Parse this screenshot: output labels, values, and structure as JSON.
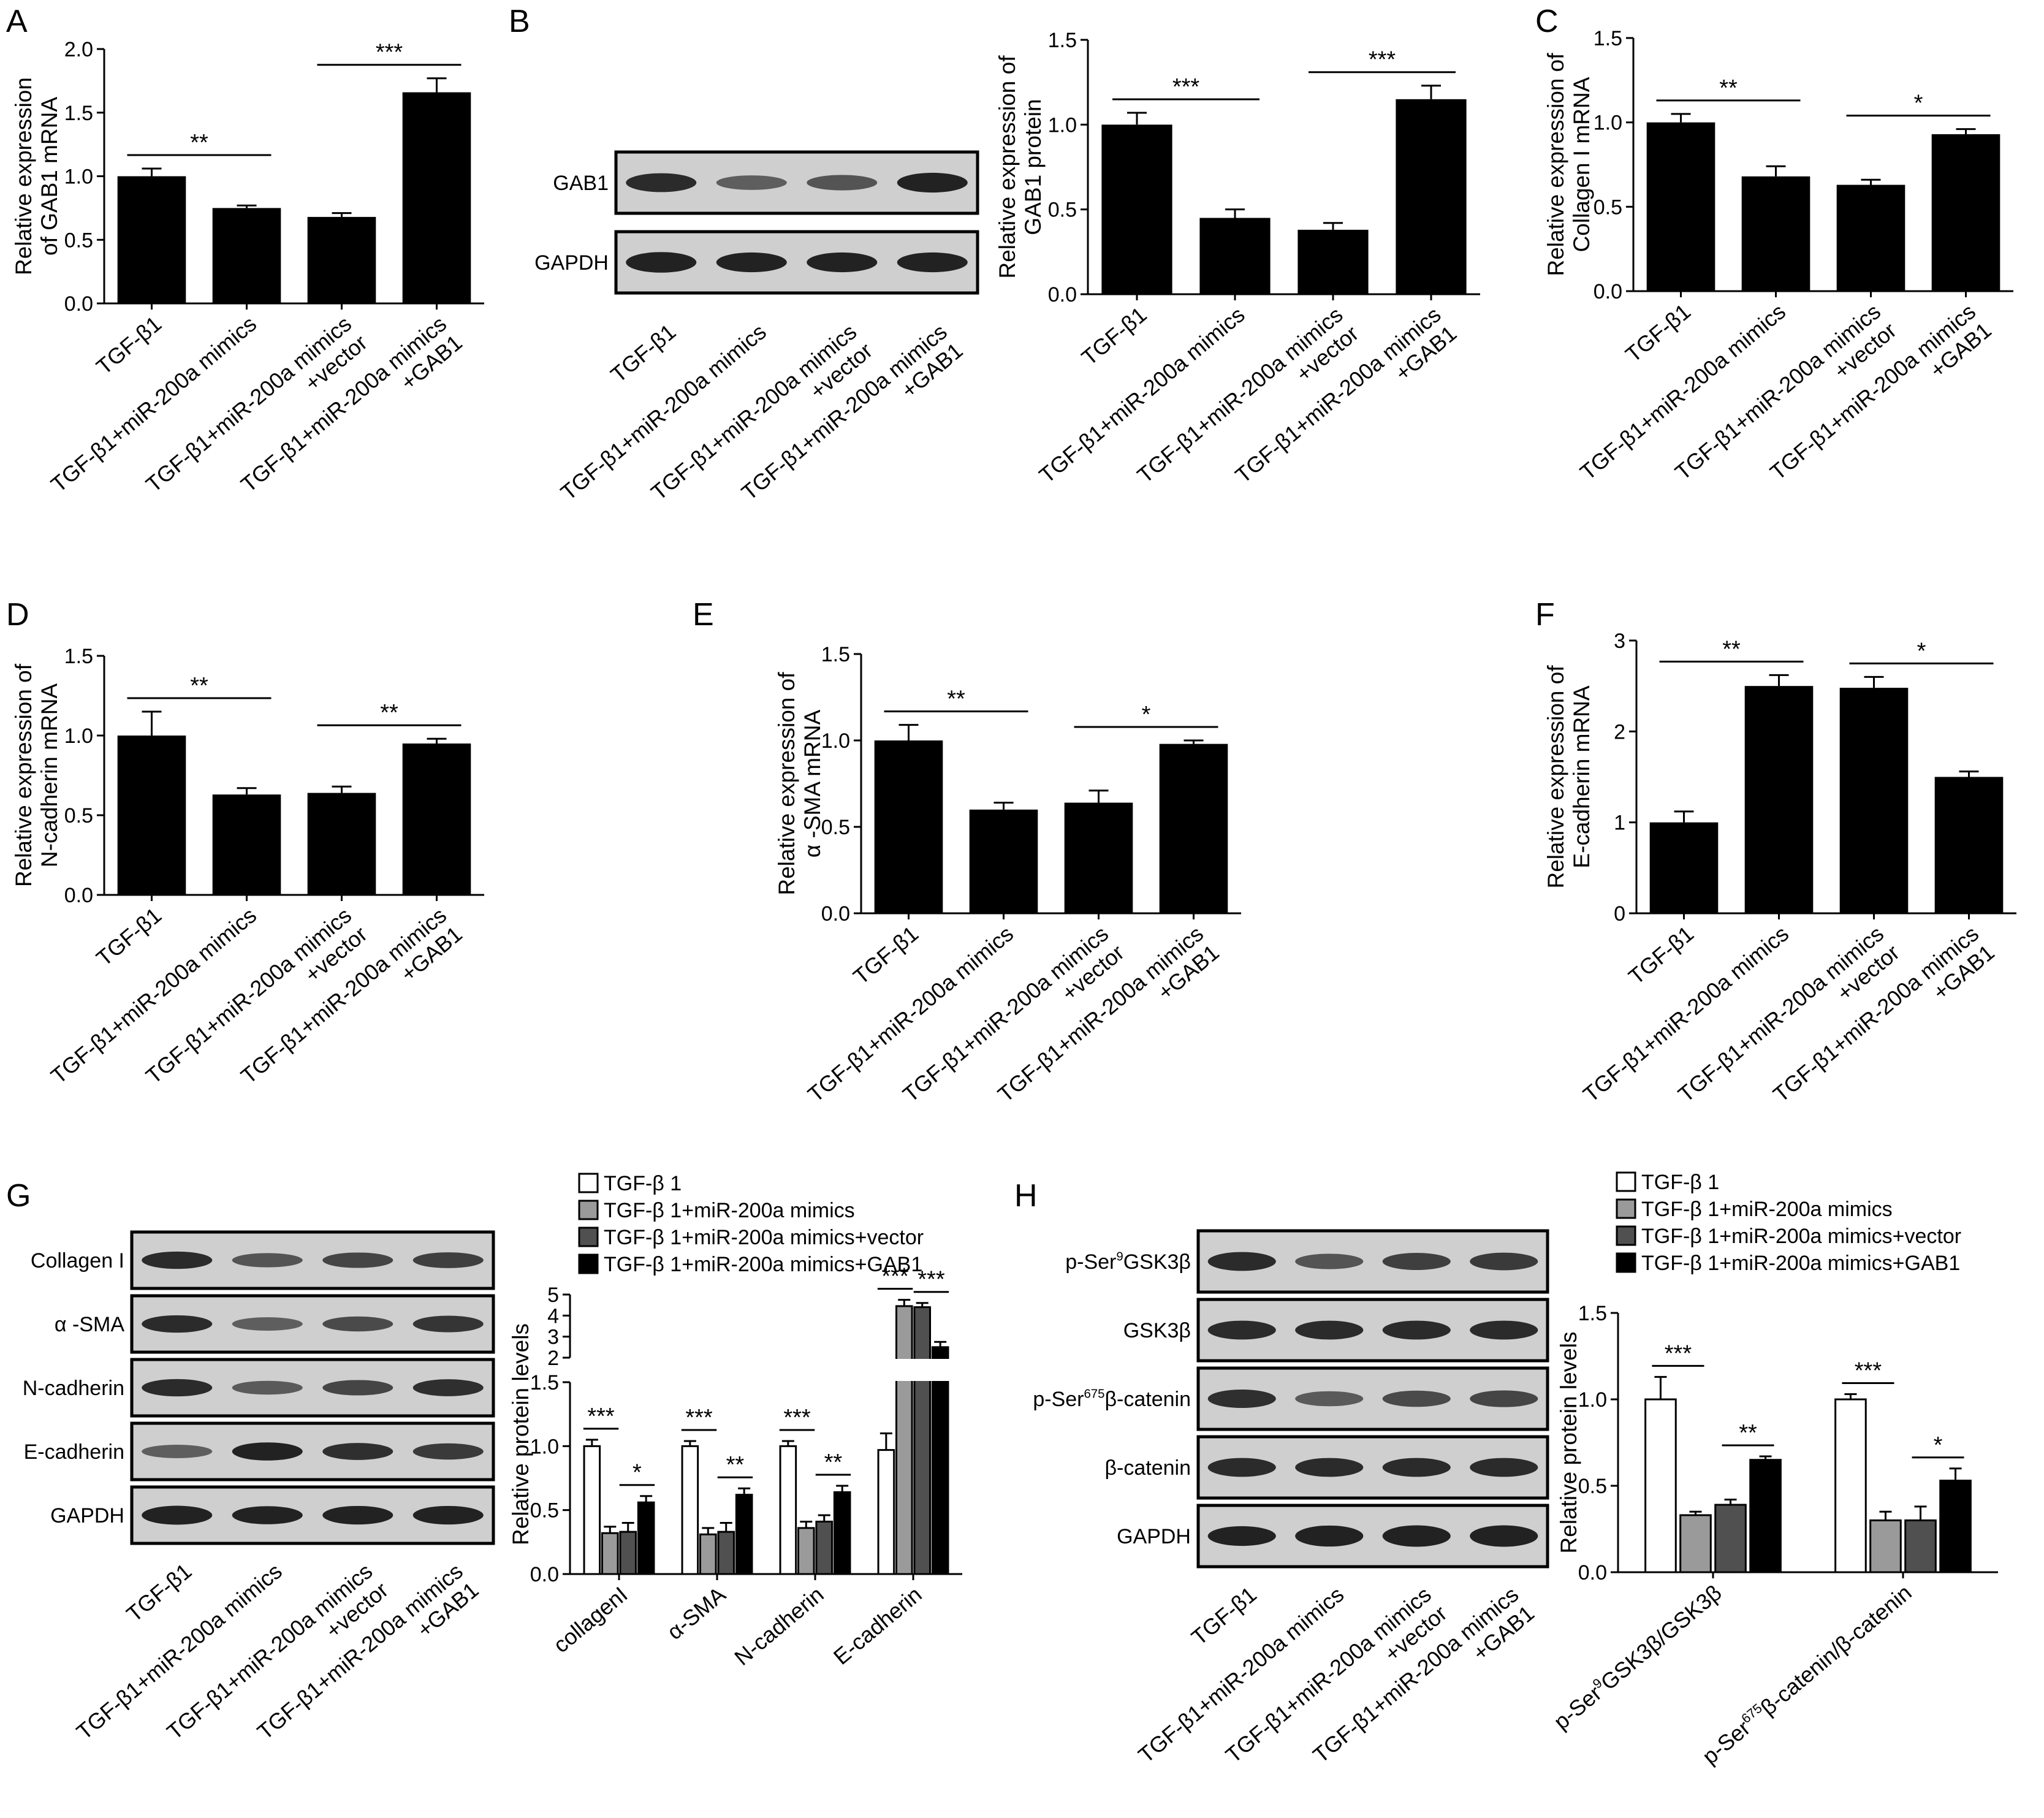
{
  "figure": {
    "group_labels": [
      "TGF-β1",
      "TGF-β1+miR-200a mimics",
      "TGF-β1+miR-200a mimics\n+vector",
      "TGF-β1+miR-200a mimics\n+GAB1"
    ],
    "legend_labels": [
      "TGF-β 1",
      "TGF-β 1+miR-200a mimics",
      "TGF-β 1+miR-200a mimics+vector",
      "TGF-β 1+miR-200a mimics+GAB1"
    ],
    "colors": {
      "black": "#000000",
      "light_gray": "#9a9a9a",
      "dark_gray": "#505050",
      "white": "#ffffff",
      "blot_bg": "#cfcfcf",
      "band": "#222222"
    }
  },
  "chart_data": [
    {
      "panel": "A",
      "type": "bar",
      "ylabel": "Relative expression\nof GAB1 mRNA",
      "ylim": [
        0,
        2.0
      ],
      "yticks": [
        "0.0",
        "0.5",
        "1.0",
        "1.5",
        "2.0"
      ],
      "values": [
        1.0,
        0.75,
        0.68,
        1.66
      ],
      "errors": [
        0.06,
        0.02,
        0.03,
        0.11
      ],
      "sig": [
        {
          "label": "**"
        },
        {
          "label": "***"
        }
      ]
    },
    {
      "panel": "B",
      "type": "bar",
      "ylabel": "Relative expression of\nGAB1 protein",
      "ylim": [
        0,
        1.5
      ],
      "yticks": [
        "0.0",
        "0.5",
        "1.0",
        "1.5"
      ],
      "values": [
        1.0,
        0.45,
        0.38,
        1.15
      ],
      "errors": [
        0.07,
        0.05,
        0.04,
        0.08
      ],
      "sig": [
        {
          "label": "***"
        },
        {
          "label": "***"
        }
      ],
      "blot": {
        "rows": [
          {
            "label": "GAB1",
            "bands": [
              1.0,
              0.5,
              0.6,
              1.1
            ]
          },
          {
            "label": "GAPDH",
            "bands": [
              1.2,
              1.1,
              1.1,
              1.1
            ]
          }
        ]
      }
    },
    {
      "panel": "C",
      "type": "bar",
      "ylabel": "Relative expression of\nCollagen I mRNA",
      "ylim": [
        0,
        1.5
      ],
      "yticks": [
        "0.0",
        "0.5",
        "1.0",
        "1.5"
      ],
      "values": [
        1.0,
        0.68,
        0.63,
        0.93
      ],
      "errors": [
        0.05,
        0.06,
        0.03,
        0.03
      ],
      "sig": [
        {
          "label": "**"
        },
        {
          "label": "*"
        }
      ]
    },
    {
      "panel": "D",
      "type": "bar",
      "ylabel": "Relative expression of\nN-cadherin mRNA",
      "ylim": [
        0,
        1.5
      ],
      "yticks": [
        "0.0",
        "0.5",
        "1.0",
        "1.5"
      ],
      "values": [
        1.0,
        0.63,
        0.64,
        0.95
      ],
      "errors": [
        0.15,
        0.04,
        0.04,
        0.03
      ],
      "sig": [
        {
          "label": "**"
        },
        {
          "label": "**"
        }
      ]
    },
    {
      "panel": "E",
      "type": "bar",
      "ylabel": "Relative expression of\nα -SMA mRNA",
      "ylim": [
        0,
        1.5
      ],
      "yticks": [
        "0.0",
        "0.5",
        "1.0",
        "1.5"
      ],
      "values": [
        1.0,
        0.6,
        0.64,
        0.98
      ],
      "errors": [
        0.09,
        0.04,
        0.07,
        0.02
      ],
      "sig": [
        {
          "label": "**"
        },
        {
          "label": "*"
        }
      ]
    },
    {
      "panel": "F",
      "type": "bar",
      "ylabel": "Relative expression of\nE-cadherin mRNA",
      "ylim": [
        0,
        3
      ],
      "yticks": [
        "0",
        "1",
        "2",
        "3"
      ],
      "values": [
        1.0,
        2.5,
        2.48,
        1.5
      ],
      "errors": [
        0.12,
        0.12,
        0.12,
        0.06
      ],
      "sig": [
        {
          "label": "**"
        },
        {
          "label": "*"
        }
      ]
    },
    {
      "panel": "G",
      "type": "bar",
      "ylabel": "Relative protein levels",
      "categories": [
        "collagenI",
        "α-SMA",
        "N-cadherin",
        "E-cadherin"
      ],
      "yticks_lower": [
        "0.0",
        "0.5",
        "1.0",
        "1.5"
      ],
      "yticks_upper": [
        "2",
        "3",
        "4",
        "5"
      ],
      "axis_break": [
        1.5,
        2.0
      ],
      "series": [
        {
          "values": [
            1.0,
            1.0,
            1.0,
            0.97
          ],
          "errors": [
            0.05,
            0.04,
            0.04,
            0.13
          ]
        },
        {
          "values": [
            0.32,
            0.31,
            0.36,
            4.45
          ],
          "errors": [
            0.05,
            0.05,
            0.05,
            0.3
          ]
        },
        {
          "values": [
            0.33,
            0.33,
            0.41,
            4.4
          ],
          "errors": [
            0.07,
            0.07,
            0.05,
            0.2
          ]
        },
        {
          "values": [
            0.56,
            0.62,
            0.64,
            2.5
          ],
          "errors": [
            0.05,
            0.05,
            0.05,
            0.25
          ]
        }
      ],
      "sig": [
        {
          "label": "***"
        },
        {
          "label": "*"
        },
        {
          "label": "***"
        },
        {
          "label": "**"
        },
        {
          "label": "***"
        },
        {
          "label": "**"
        },
        {
          "label": "***"
        },
        {
          "label": "***"
        }
      ],
      "blot": {
        "rows": [
          {
            "label": "Collagen I",
            "bands": [
              1.0,
              0.6,
              0.75,
              0.8
            ]
          },
          {
            "label": "α -SMA",
            "bands": [
              1.0,
              0.5,
              0.7,
              0.9
            ]
          },
          {
            "label": "N-cadherin",
            "bands": [
              1.0,
              0.55,
              0.75,
              0.95
            ]
          },
          {
            "label": "E-cadherin",
            "bands": [
              0.5,
              1.1,
              0.95,
              0.85
            ]
          },
          {
            "label": "GAPDH",
            "bands": [
              1.2,
              1.1,
              1.15,
              1.15
            ]
          }
        ]
      }
    },
    {
      "panel": "H",
      "type": "bar",
      "ylabel": "Relative protein levels",
      "ylim": [
        0,
        1.5
      ],
      "yticks": [
        "0.0",
        "0.5",
        "1.0",
        "1.5"
      ],
      "categories": [
        "p-Ser9GSK3β/GSK3β",
        "p-Ser675β-catenin/β-catenin"
      ],
      "series": [
        {
          "values": [
            1.0,
            1.0
          ],
          "errors": [
            0.13,
            0.03
          ]
        },
        {
          "values": [
            0.33,
            0.3
          ],
          "errors": [
            0.02,
            0.05
          ]
        },
        {
          "values": [
            0.39,
            0.3
          ],
          "errors": [
            0.03,
            0.08
          ]
        },
        {
          "values": [
            0.65,
            0.53
          ],
          "errors": [
            0.02,
            0.07
          ]
        }
      ],
      "sig": [
        {
          "label": "***"
        },
        {
          "label": "**"
        },
        {
          "label": "***"
        },
        {
          "label": "*"
        }
      ],
      "blot": {
        "rows": [
          {
            "label": "p-Ser9GSK3β",
            "bands": [
              1.0,
              0.6,
              0.8,
              0.85
            ]
          },
          {
            "label": "GSK3β",
            "bands": [
              1.0,
              1.0,
              1.0,
              1.0
            ]
          },
          {
            "label": "p-Ser675β-catenin",
            "bands": [
              0.95,
              0.55,
              0.7,
              0.75
            ]
          },
          {
            "label": "β-catenin",
            "bands": [
              1.0,
              1.0,
              1.0,
              1.0
            ]
          },
          {
            "label": "GAPDH",
            "bands": [
              1.1,
              1.25,
              1.3,
              1.3
            ]
          }
        ]
      }
    }
  ]
}
